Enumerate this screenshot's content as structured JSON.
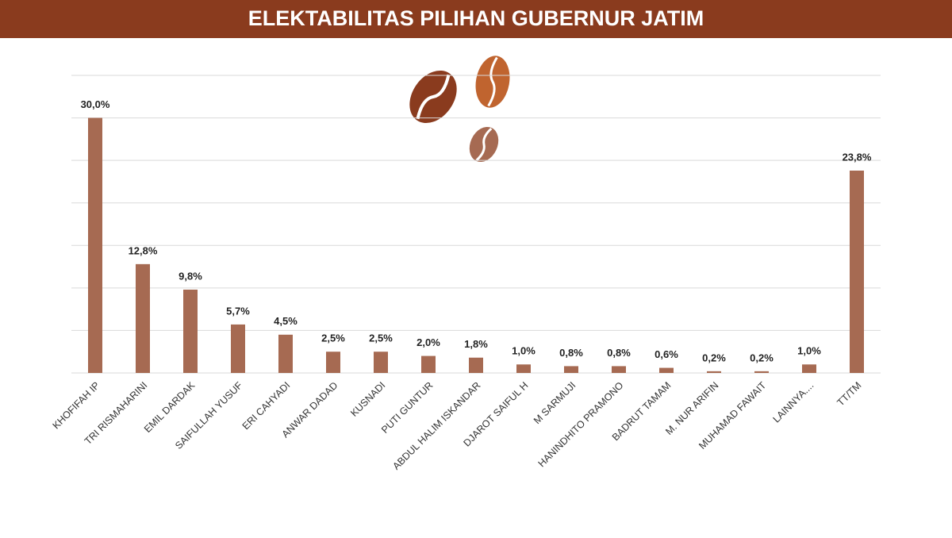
{
  "chart_data": {
    "type": "bar",
    "title": "ELEKTABILITAS PILIHAN GUBERNUR JATIM",
    "categories": [
      "KHOFIFAH IP",
      "TRI RISMAHARINI",
      "EMIL DARDAK",
      "SAIFULLAH YUSUF",
      "ERI CAHYADI",
      "ANWAR DADAD",
      "KUSNADI",
      "PUTI GUNTUR",
      "ABDUL HALIM ISKANDAR",
      "DJAROT SAIFUL H",
      "M SARMUJI",
      "HANINDHITO PRAMONO",
      "BADRUT TAMAM",
      "M. NUR ARIFIN",
      "MUHAMAD FAWAIT",
      "LAINNYA....",
      "TT/TM"
    ],
    "values": [
      30.0,
      12.8,
      9.8,
      5.7,
      4.5,
      2.5,
      2.5,
      2.0,
      1.8,
      1.0,
      0.8,
      0.8,
      0.6,
      0.2,
      0.2,
      1.0,
      23.8
    ],
    "value_labels": [
      "30,0%",
      "12,8%",
      "9,8%",
      "5,7%",
      "4,5%",
      "2,5%",
      "2,5%",
      "2,0%",
      "1,8%",
      "1,0%",
      "0,8%",
      "0,8%",
      "0,6%",
      "0,2%",
      "0,2%",
      "1,0%",
      "23,8%"
    ],
    "color": "#a66a52",
    "ylim": [
      0,
      35
    ],
    "yticks": [
      0,
      5,
      10,
      15,
      20,
      25,
      30,
      35
    ],
    "grid": true
  }
}
